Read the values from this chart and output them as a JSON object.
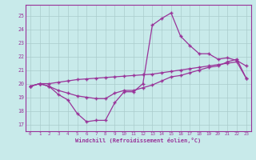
{
  "x": [
    0,
    1,
    2,
    3,
    4,
    5,
    6,
    7,
    8,
    9,
    10,
    11,
    12,
    13,
    14,
    15,
    16,
    17,
    18,
    19,
    20,
    21,
    22,
    23
  ],
  "line1": [
    19.8,
    20.0,
    19.8,
    19.2,
    18.8,
    17.8,
    17.2,
    17.3,
    17.3,
    18.6,
    19.4,
    19.4,
    20.0,
    24.3,
    24.8,
    25.2,
    23.5,
    22.8,
    22.2,
    22.2,
    21.8,
    21.9,
    21.7,
    21.3
  ],
  "line2": [
    19.8,
    20.0,
    19.8,
    19.5,
    19.3,
    19.1,
    19.0,
    18.9,
    18.9,
    19.3,
    19.5,
    19.5,
    19.7,
    19.9,
    20.2,
    20.5,
    20.6,
    20.8,
    21.0,
    21.2,
    21.3,
    21.6,
    21.8,
    20.4
  ],
  "line3": [
    19.8,
    20.0,
    20.0,
    20.1,
    20.2,
    20.3,
    20.35,
    20.4,
    20.45,
    20.5,
    20.55,
    20.6,
    20.65,
    20.7,
    20.8,
    20.9,
    21.0,
    21.1,
    21.2,
    21.3,
    21.4,
    21.5,
    21.6,
    20.4
  ],
  "bg_color": "#c8eaea",
  "line_color": "#993399",
  "grid_color": "#aacccc",
  "ylabel_values": [
    17,
    18,
    19,
    20,
    21,
    22,
    23,
    24,
    25
  ],
  "xlabel": "Windchill (Refroidissement éolien,°C)",
  "ylim": [
    16.5,
    25.8
  ],
  "xlim": [
    -0.5,
    23.5
  ]
}
